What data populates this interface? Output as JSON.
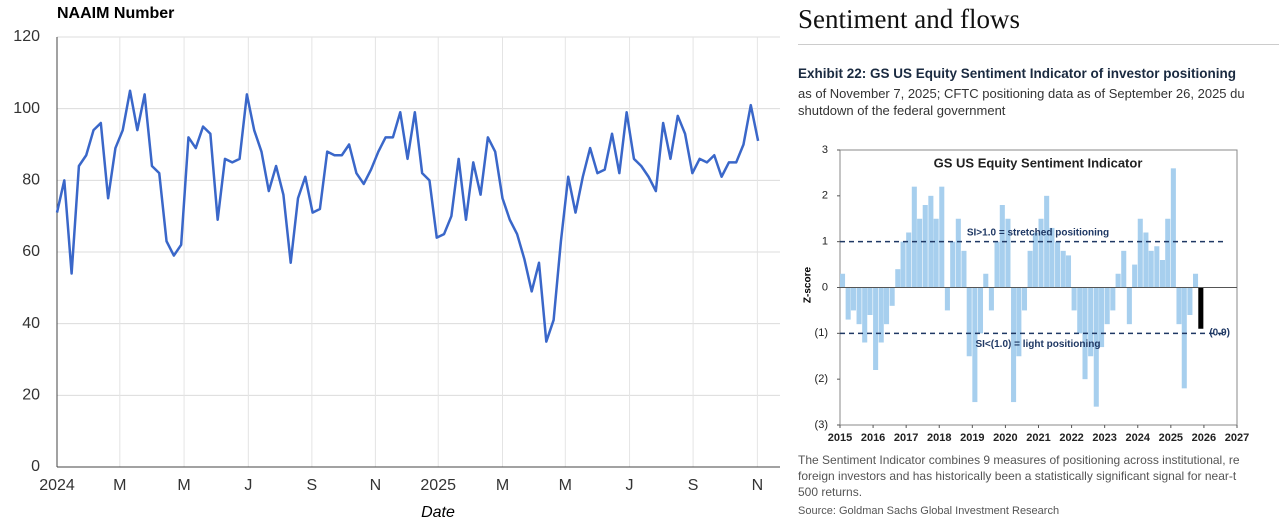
{
  "chart_data": [
    {
      "type": "line",
      "title": "NAAIM Number",
      "xlabel": "Date",
      "color": "#3a67c9",
      "grid": true,
      "x": [
        0,
        1,
        2,
        3,
        4,
        5,
        6,
        7,
        8,
        9,
        10,
        11,
        12,
        13,
        14,
        15,
        16,
        17,
        18,
        19,
        20,
        21,
        22,
        23,
        24,
        25,
        26,
        27,
        28,
        29,
        30,
        31,
        32,
        33,
        34,
        35,
        36,
        37,
        38,
        39,
        40,
        41,
        42,
        43,
        44,
        45,
        46,
        47,
        48,
        49,
        50,
        51,
        52,
        53,
        54,
        55,
        56,
        57,
        58,
        59,
        60,
        61,
        62,
        63,
        64,
        65,
        66,
        67,
        68,
        69,
        70,
        71,
        72,
        73,
        74,
        75,
        76,
        77,
        78,
        79,
        80,
        81,
        82,
        83,
        84,
        85,
        86,
        87,
        88,
        89,
        90,
        91,
        92,
        93,
        94,
        95,
        96
      ],
      "values": [
        71,
        80,
        54,
        84,
        87,
        94,
        96,
        75,
        89,
        94,
        105,
        94,
        104,
        84,
        82,
        63,
        59,
        62,
        92,
        89,
        95,
        93,
        69,
        86,
        85,
        86,
        104,
        94,
        88,
        77,
        84,
        76,
        57,
        75,
        81,
        71,
        72,
        88,
        87,
        87,
        90,
        82,
        79,
        83,
        88,
        92,
        92,
        99,
        86,
        99,
        82,
        80,
        64,
        65,
        70,
        86,
        69,
        85,
        76,
        92,
        88,
        75,
        69,
        65,
        58,
        49,
        57,
        35,
        41,
        63,
        81,
        71,
        81,
        89,
        82,
        83,
        93,
        82,
        99,
        86,
        84,
        81,
        77,
        96,
        86,
        98,
        93,
        82,
        86,
        85,
        87,
        81,
        85,
        85,
        90,
        101,
        91
      ],
      "xlim": [
        0,
        99
      ],
      "xticks": [
        {
          "value": 0,
          "label": "2024"
        },
        {
          "value": 8.6,
          "label": "M"
        },
        {
          "value": 17.4,
          "label": "M"
        },
        {
          "value": 26.2,
          "label": "J"
        },
        {
          "value": 34.9,
          "label": "S"
        },
        {
          "value": 43.6,
          "label": "N"
        },
        {
          "value": 52.2,
          "label": "2025"
        },
        {
          "value": 61.0,
          "label": "M"
        },
        {
          "value": 69.6,
          "label": "M"
        },
        {
          "value": 78.4,
          "label": "J"
        },
        {
          "value": 87.1,
          "label": "S"
        },
        {
          "value": 95.9,
          "label": "N"
        }
      ],
      "ylim": [
        0,
        120
      ],
      "yticks": [
        0,
        20,
        40,
        60,
        80,
        100,
        120
      ]
    },
    {
      "type": "bar",
      "title": "GS US Equity  Sentiment Indicator",
      "ylabel": "Z-score",
      "color": "#a7cfee",
      "last_color": "#000000",
      "x": [
        2015,
        2015.17,
        2015.33,
        2015.5,
        2015.67,
        2015.83,
        2016,
        2016.17,
        2016.33,
        2016.5,
        2016.67,
        2016.83,
        2017,
        2017.17,
        2017.33,
        2017.5,
        2017.67,
        2017.83,
        2018,
        2018.17,
        2018.33,
        2018.5,
        2018.67,
        2018.83,
        2019,
        2019.17,
        2019.33,
        2019.5,
        2019.67,
        2019.83,
        2020,
        2020.17,
        2020.33,
        2020.5,
        2020.67,
        2020.83,
        2021,
        2021.17,
        2021.33,
        2021.5,
        2021.67,
        2021.83,
        2022,
        2022.17,
        2022.33,
        2022.5,
        2022.67,
        2022.83,
        2023,
        2023.17,
        2023.33,
        2023.5,
        2023.67,
        2023.83,
        2024,
        2024.17,
        2024.33,
        2024.5,
        2024.67,
        2024.83,
        2025,
        2025.17,
        2025.33,
        2025.5,
        2025.67,
        2025.83
      ],
      "values": [
        0.3,
        -0.7,
        -0.5,
        -0.8,
        -1.2,
        -0.6,
        -1.8,
        -1.2,
        -0.8,
        -0.4,
        0.4,
        1.0,
        1.2,
        2.2,
        1.5,
        1.8,
        2.0,
        1.5,
        2.2,
        -0.5,
        1.0,
        1.5,
        0.8,
        -1.5,
        -2.5,
        -1.0,
        0.3,
        -0.5,
        1.0,
        1.8,
        1.5,
        -2.5,
        -1.5,
        -0.5,
        0.8,
        1.2,
        1.5,
        2.0,
        1.3,
        1.0,
        0.8,
        0.7,
        -0.5,
        -1.0,
        -2.0,
        -1.5,
        -2.6,
        -1.3,
        -0.8,
        -0.5,
        0.3,
        0.8,
        -0.8,
        0.5,
        1.5,
        1.2,
        0.8,
        0.9,
        0.6,
        1.5,
        2.6,
        -0.8,
        -2.2,
        -0.6,
        0.3,
        -0.9
      ],
      "xlim": [
        2015,
        2027
      ],
      "xticks": [
        2015,
        2016,
        2017,
        2018,
        2019,
        2020,
        2021,
        2022,
        2023,
        2024,
        2025,
        2026,
        2027
      ],
      "ylim": [
        -3,
        3
      ],
      "yticks": [
        3,
        2,
        1,
        0,
        {
          "value": -1,
          "label": "(1)"
        },
        {
          "value": -2,
          "label": "(2)"
        },
        {
          "value": -3,
          "label": "(3)"
        }
      ],
      "ref_lines": [
        1,
        -1
      ],
      "ref_line_color": "#1f3864",
      "annotations": [
        "SI>1.0 = stretched positioning",
        "SI<(1.0) = light positioning",
        "(0.9)"
      ]
    }
  ],
  "document": {
    "heading": "Sentiment and flows",
    "exhibit_title": "Exhibit 22: GS US Equity Sentiment Indicator of investor positioning",
    "exhibit_subtitle": [
      "as of November 7, 2025; CFTC positioning data as of September 26, 2025 du",
      "shutdown of the federal government"
    ],
    "footnote": [
      "The Sentiment Indicator combines 9 measures of positioning across institutional, re",
      "foreign investors and has historically been a statistically significant signal for near-t",
      "500 returns."
    ],
    "source": "Source: Goldman Sachs Global Investment Research"
  }
}
